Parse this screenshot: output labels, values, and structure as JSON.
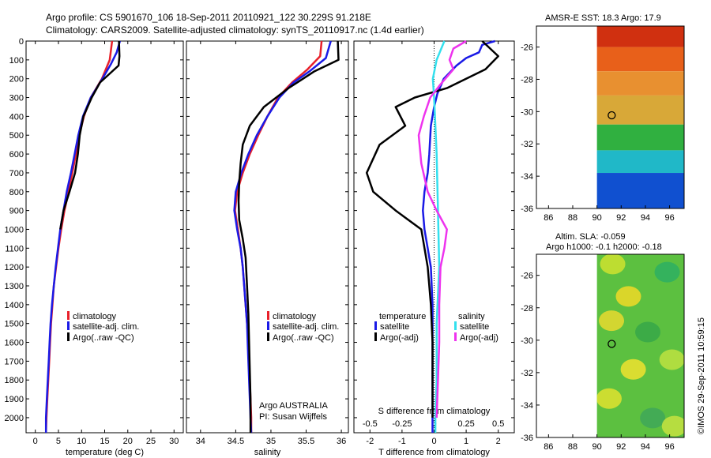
{
  "title_line1": "Argo profile: CS 5901670_106 18-Sep-2011 20110921_122 30.229S 91.218E",
  "title_line2": "Climatology: CARS2009. Satellite-adjusted climatology: synTS_20110917.nc (1.4d earlier)",
  "colors": {
    "climatology": "#e8202a",
    "satellite": "#1a1ae6",
    "argo": "#000000",
    "sal_satellite": "#33e0ee",
    "sal_argo": "#ee33ee"
  },
  "chart_data": [
    {
      "type": "line",
      "name": "temperature-profile",
      "xlabel": "temperature (deg C)",
      "ylabel": "",
      "xlim": [
        -2,
        32
      ],
      "ylim": [
        2080,
        0
      ],
      "xticks": [
        "0",
        "5",
        "10",
        "15",
        "20",
        "25",
        "30"
      ],
      "yticks": [
        "0",
        "100",
        "200",
        "300",
        "400",
        "500",
        "600",
        "700",
        "800",
        "900",
        "1000",
        "1100",
        "1200",
        "1300",
        "1400",
        "1500",
        "1600",
        "1700",
        "1800",
        "1900",
        "2000"
      ],
      "legend": [
        "climatology",
        "satellite-adj. clim.",
        "Argo(..raw -QC)"
      ],
      "series": [
        {
          "name": "climatology",
          "color": "climatology",
          "points": [
            [
              16.6,
              0
            ],
            [
              16.1,
              100
            ],
            [
              14.4,
              200
            ],
            [
              12.0,
              300
            ],
            [
              10.5,
              400
            ],
            [
              9.5,
              500
            ],
            [
              8.8,
              600
            ],
            [
              8.0,
              700
            ],
            [
              7.2,
              800
            ],
            [
              6.3,
              900
            ],
            [
              5.6,
              1000
            ],
            [
              5.0,
              1100
            ],
            [
              4.5,
              1200
            ],
            [
              4.0,
              1300
            ],
            [
              3.7,
              1400
            ],
            [
              3.4,
              1500
            ],
            [
              3.2,
              1600
            ],
            [
              3.0,
              1700
            ],
            [
              2.8,
              1800
            ],
            [
              2.6,
              1900
            ],
            [
              2.4,
              2000
            ],
            [
              2.3,
              2080
            ]
          ]
        },
        {
          "name": "satellite-adj. clim.",
          "color": "satellite",
          "points": [
            [
              18.3,
              0
            ],
            [
              17.6,
              60
            ],
            [
              16.4,
              120
            ],
            [
              14.5,
              200
            ],
            [
              12.0,
              300
            ],
            [
              10.3,
              400
            ],
            [
              9.3,
              500
            ],
            [
              8.5,
              600
            ],
            [
              7.7,
              700
            ],
            [
              6.8,
              800
            ],
            [
              6.1,
              900
            ],
            [
              5.4,
              1000
            ],
            [
              4.9,
              1100
            ],
            [
              4.4,
              1200
            ],
            [
              4.0,
              1300
            ],
            [
              3.6,
              1400
            ],
            [
              3.3,
              1500
            ],
            [
              3.1,
              1600
            ],
            [
              2.9,
              1700
            ],
            [
              2.7,
              1800
            ],
            [
              2.5,
              1900
            ],
            [
              2.3,
              2000
            ],
            [
              2.3,
              2080
            ]
          ]
        },
        {
          "name": "Argo",
          "color": "argo",
          "points": [
            [
              18.1,
              0
            ],
            [
              18.2,
              80
            ],
            [
              18.0,
              130
            ],
            [
              14.0,
              220
            ],
            [
              12.2,
              300
            ],
            [
              10.4,
              400
            ],
            [
              9.6,
              500
            ],
            [
              9.2,
              600
            ],
            [
              8.6,
              700
            ],
            [
              7.4,
              800
            ],
            [
              6.1,
              900
            ],
            [
              5.4,
              1000
            ]
          ]
        }
      ]
    },
    {
      "type": "line",
      "name": "salinity-profile",
      "xlabel": "salinity",
      "xlim": [
        33.8,
        36.1
      ],
      "ylim": [
        2080,
        0
      ],
      "xticks": [
        "34",
        "34.5",
        "35",
        "35.5",
        "36"
      ],
      "legend": [
        "climatology",
        "satellite-adj. clim.",
        "Argo(..raw -QC)"
      ],
      "annotation": [
        "Argo AUSTRALIA",
        "PI: Susan Wijffels"
      ],
      "series": [
        {
          "name": "climatology",
          "color": "climatology",
          "points": [
            [
              35.72,
              0
            ],
            [
              35.7,
              80
            ],
            [
              35.52,
              150
            ],
            [
              35.3,
              220
            ],
            [
              35.1,
              300
            ],
            [
              34.95,
              400
            ],
            [
              34.82,
              500
            ],
            [
              34.7,
              600
            ],
            [
              34.6,
              700
            ],
            [
              34.52,
              800
            ],
            [
              34.49,
              900
            ],
            [
              34.53,
              1000
            ],
            [
              34.57,
              1100
            ],
            [
              34.6,
              1200
            ],
            [
              34.62,
              1300
            ],
            [
              34.64,
              1400
            ],
            [
              34.66,
              1500
            ],
            [
              34.68,
              1600
            ],
            [
              34.69,
              1700
            ],
            [
              34.7,
              1800
            ],
            [
              34.71,
              1900
            ],
            [
              34.72,
              2000
            ],
            [
              34.72,
              2080
            ]
          ]
        },
        {
          "name": "satellite-adj. clim.",
          "color": "satellite",
          "points": [
            [
              35.85,
              0
            ],
            [
              35.78,
              90
            ],
            [
              35.55,
              160
            ],
            [
              35.32,
              220
            ],
            [
              35.12,
              300
            ],
            [
              34.95,
              400
            ],
            [
              34.8,
              500
            ],
            [
              34.68,
              600
            ],
            [
              34.58,
              700
            ],
            [
              34.5,
              800
            ],
            [
              34.48,
              900
            ],
            [
              34.52,
              1000
            ],
            [
              34.57,
              1100
            ],
            [
              34.6,
              1200
            ],
            [
              34.62,
              1300
            ],
            [
              34.64,
              1400
            ],
            [
              34.66,
              1500
            ],
            [
              34.67,
              1600
            ],
            [
              34.68,
              1700
            ],
            [
              34.69,
              1800
            ],
            [
              34.7,
              1900
            ],
            [
              34.71,
              2000
            ],
            [
              34.72,
              2080
            ]
          ]
        },
        {
          "name": "Argo",
          "color": "argo",
          "points": [
            [
              35.95,
              0
            ],
            [
              35.96,
              100
            ],
            [
              35.62,
              160
            ],
            [
              35.25,
              250
            ],
            [
              34.9,
              350
            ],
            [
              34.7,
              450
            ],
            [
              34.6,
              550
            ],
            [
              34.57,
              650
            ],
            [
              34.55,
              750
            ],
            [
              34.54,
              850
            ],
            [
              34.55,
              950
            ],
            [
              34.6,
              1050
            ],
            [
              34.64,
              1150
            ],
            [
              34.66,
              1300
            ],
            [
              34.68,
              1450
            ],
            [
              34.69,
              1600
            ],
            [
              34.7,
              1750
            ],
            [
              34.71,
              1900
            ],
            [
              34.71,
              2000
            ],
            [
              34.71,
              2080
            ]
          ]
        }
      ]
    },
    {
      "type": "line",
      "name": "difference-profile",
      "xlabel": "T difference from climatology",
      "x2label": "S difference from climatology",
      "xlim": [
        -2.5,
        2.5
      ],
      "xticks": [
        "-2",
        "-1",
        "0",
        "1",
        "2"
      ],
      "x2ticks": [
        "-0.5",
        "-0.25",
        "0",
        "0.25",
        "0.5"
      ],
      "x2lim": [
        -0.625,
        0.625
      ],
      "legend_titles": [
        "temperature",
        "salinity"
      ],
      "legend": [
        "satellite",
        "Argo(-adj)",
        "satellite",
        "Argo(-adj)"
      ],
      "series": [
        {
          "name": "T satellite",
          "color": "satellite",
          "axis": "T",
          "points": [
            [
              1.9,
              0
            ],
            [
              1.5,
              20
            ],
            [
              1.4,
              60
            ],
            [
              1.0,
              90
            ],
            [
              0.7,
              130
            ],
            [
              0.3,
              200
            ],
            [
              0.1,
              280
            ],
            [
              0.0,
              350
            ],
            [
              -0.1,
              450
            ],
            [
              -0.15,
              600
            ],
            [
              -0.2,
              700
            ],
            [
              -0.3,
              800
            ],
            [
              -0.35,
              900
            ],
            [
              -0.3,
              1000
            ],
            [
              -0.2,
              1100
            ],
            [
              -0.1,
              1200
            ],
            [
              -0.05,
              1400
            ],
            [
              -0.05,
              1600
            ],
            [
              -0.05,
              1800
            ],
            [
              -0.05,
              2000
            ],
            [
              -0.05,
              2080
            ]
          ]
        },
        {
          "name": "T Argo",
          "color": "argo",
          "axis": "T",
          "points": [
            [
              1.5,
              0
            ],
            [
              2.0,
              80
            ],
            [
              1.6,
              150
            ],
            [
              0.4,
              250
            ],
            [
              -0.6,
              300
            ],
            [
              -1.2,
              350
            ],
            [
              -0.9,
              450
            ],
            [
              -1.7,
              550
            ],
            [
              -2.1,
              700
            ],
            [
              -1.9,
              800
            ],
            [
              -1.2,
              900
            ],
            [
              -0.4,
              1000
            ],
            [
              -0.2,
              1200
            ],
            [
              -0.1,
              1400
            ],
            [
              -0.05,
              1600
            ],
            [
              -0.05,
              1800
            ],
            [
              -0.05,
              2000
            ]
          ]
        },
        {
          "name": "S satellite",
          "color": "sal_satellite",
          "axis": "S",
          "points": [
            [
              0.08,
              0
            ],
            [
              0.02,
              100
            ],
            [
              -0.01,
              200
            ],
            [
              0.0,
              300
            ],
            [
              0.02,
              600
            ],
            [
              0.03,
              900
            ],
            [
              0.04,
              1200
            ],
            [
              0.02,
              1500
            ],
            [
              0.02,
              1800
            ],
            [
              0.01,
              2000
            ],
            [
              0.01,
              2080
            ]
          ]
        },
        {
          "name": "S Argo",
          "color": "sal_argo",
          "axis": "S",
          "points": [
            [
              0.25,
              0
            ],
            [
              0.15,
              40
            ],
            [
              0.12,
              100
            ],
            [
              0.15,
              150
            ],
            [
              0.05,
              230
            ],
            [
              -0.03,
              300
            ],
            [
              -0.08,
              400
            ],
            [
              -0.12,
              500
            ],
            [
              -0.1,
              650
            ],
            [
              -0.05,
              800
            ],
            [
              0.02,
              900
            ],
            [
              0.1,
              1000
            ],
            [
              0.08,
              1100
            ],
            [
              0.05,
              1200
            ],
            [
              0.04,
              1400
            ],
            [
              0.04,
              1600
            ],
            [
              0.03,
              1800
            ],
            [
              0.02,
              2000
            ]
          ]
        }
      ]
    }
  ],
  "maps": {
    "sst": {
      "title": "AMSR-E SST: 18.3 Argo: 17.9",
      "lat_ticks": [
        "-26",
        "-28",
        "-30",
        "-32",
        "-34",
        "-36"
      ],
      "lon_ticks": [
        "86",
        "88",
        "90",
        "92",
        "94",
        "96"
      ],
      "lat_range": [
        -36,
        -24.7
      ],
      "lon_range": [
        85,
        97.2
      ],
      "data_lon_start": 90,
      "marker": {
        "lon": 91.218,
        "lat": -30.229
      },
      "bands": [
        {
          "lat_top": -24.7,
          "lat_bottom": -26.0,
          "color": "#d03010"
        },
        {
          "lat_top": -26.0,
          "lat_bottom": -27.5,
          "color": "#e8601a"
        },
        {
          "lat_top": -27.5,
          "lat_bottom": -29.0,
          "color": "#e89030"
        },
        {
          "lat_top": -29.0,
          "lat_bottom": -30.8,
          "color": "#d8a838"
        },
        {
          "lat_top": -30.8,
          "lat_bottom": -32.4,
          "color": "#30b040"
        },
        {
          "lat_top": -32.4,
          "lat_bottom": -33.8,
          "color": "#20b8c8"
        },
        {
          "lat_top": -33.8,
          "lat_bottom": -36.0,
          "color": "#1050d0"
        }
      ]
    },
    "sla": {
      "title_line1": "Altim. SLA: -0.059",
      "title_line2": "Argo h1000: -0.1 h2000: -0.18",
      "lat_ticks": [
        "-26",
        "-28",
        "-30",
        "-32",
        "-34",
        "-36"
      ],
      "lon_ticks": [
        "86",
        "88",
        "90",
        "92",
        "94",
        "96"
      ],
      "lat_range": [
        -36,
        -24.7
      ],
      "lon_range": [
        85,
        97.2
      ],
      "data_lon_start": 90,
      "marker": {
        "lon": 91.218,
        "lat": -30.229
      },
      "base_color": "#5cc040",
      "blobs": [
        {
          "lon": 91.3,
          "lat": -25.3,
          "color": "#c8e030"
        },
        {
          "lon": 95.8,
          "lat": -25.8,
          "color": "#30b060"
        },
        {
          "lon": 92.6,
          "lat": -27.3,
          "color": "#e8d828"
        },
        {
          "lon": 91.2,
          "lat": -28.8,
          "color": "#e0d830"
        },
        {
          "lon": 94.2,
          "lat": -29.5,
          "color": "#38a848"
        },
        {
          "lon": 96.2,
          "lat": -31.2,
          "color": "#b8e040"
        },
        {
          "lon": 93.0,
          "lat": -31.8,
          "color": "#e8e030"
        },
        {
          "lon": 91.0,
          "lat": -33.6,
          "color": "#d8e030"
        },
        {
          "lon": 94.6,
          "lat": -34.8,
          "color": "#40a858"
        },
        {
          "lon": 96.4,
          "lat": -35.3,
          "color": "#c0e040"
        }
      ]
    }
  },
  "stamp": "©IMOS 29-Sep-2011 10:59:15"
}
